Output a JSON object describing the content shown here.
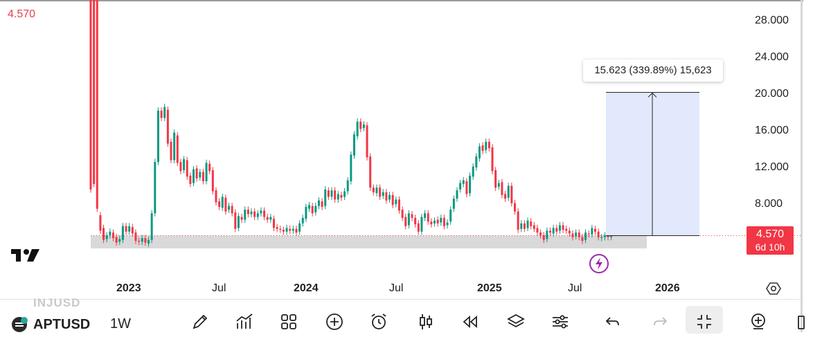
{
  "top_price": "4.570",
  "measure_label": "15.623 (339.89%) 15,623",
  "badge": {
    "price": "4.570",
    "countdown": "6d 10h"
  },
  "toolbar": {
    "symbol_ghost": "INJUSD",
    "symbol": "APTUSD",
    "interval": "1W",
    "tools": [
      "pencil-icon",
      "indicators-icon",
      "grid-icon",
      "add-icon",
      "alarm-icon",
      "candles-icon",
      "replay-icon",
      "layers-icon",
      "settings-sliders-icon",
      "undo-icon",
      "redo-icon",
      "fullscreen-exit-icon",
      "zoom-in-icon"
    ]
  },
  "colors": {
    "up": "#089981",
    "down": "#f23645",
    "measure_fill": "#e3e9fc",
    "zone_fill": "#d9d9d9",
    "flash": "#9c27b0"
  },
  "chart_data": {
    "type": "candlestick",
    "symbol": "APTUSD",
    "interval": "1W",
    "ylim": [
      0,
      30
    ],
    "y_ticks": [
      "28.000",
      "24.000",
      "20.000",
      "16.000",
      "12.000",
      "8.000"
    ],
    "x_tick_labels": [
      "2023",
      "Jul",
      "2024",
      "Jul",
      "2025",
      "Jul",
      "2026"
    ],
    "last_price": 4.57,
    "measure": {
      "from": 4.57,
      "to": 20.193,
      "change": 15.623,
      "change_pct": 339.89,
      "ticks": 15623
    },
    "candles": [
      [
        40,
        9.6
      ],
      [
        33,
        10.2
      ],
      [
        56,
        7.5
      ],
      [
        6.8,
        5.1
      ],
      [
        5.4,
        4.1
      ],
      [
        4.2,
        4.6
      ],
      [
        4.6,
        5.0
      ],
      [
        4.9,
        4.3
      ],
      [
        4.4,
        3.8
      ],
      [
        3.9,
        4.2
      ],
      [
        4.1,
        5.6
      ],
      [
        5.6,
        5.0
      ],
      [
        5.0,
        5.6
      ],
      [
        5.5,
        4.8
      ],
      [
        4.9,
        4.0
      ],
      [
        4.0,
        3.9
      ],
      [
        3.9,
        4.3
      ],
      [
        4.3,
        3.8
      ],
      [
        3.7,
        4.1
      ],
      [
        4.1,
        7.0
      ],
      [
        7.0,
        12.6
      ],
      [
        12.6,
        18.2
      ],
      [
        18.2,
        17.4
      ],
      [
        17.4,
        18.6
      ],
      [
        18.3,
        14.6
      ],
      [
        14.8,
        12.8
      ],
      [
        12.8,
        15.8
      ],
      [
        15.5,
        12.5
      ],
      [
        12.6,
        11.6
      ],
      [
        11.7,
        12.9
      ],
      [
        12.8,
        11.0
      ],
      [
        11.1,
        10.2
      ],
      [
        10.3,
        11.8
      ],
      [
        11.9,
        10.8
      ],
      [
        10.9,
        11.5
      ],
      [
        11.5,
        10.5
      ],
      [
        10.5,
        12.5
      ],
      [
        12.4,
        11.6
      ],
      [
        11.7,
        9.4
      ],
      [
        9.5,
        8.2
      ],
      [
        8.3,
        7.7
      ],
      [
        7.6,
        8.8
      ],
      [
        8.7,
        7.2
      ],
      [
        7.4,
        7.8
      ],
      [
        7.8,
        7.0
      ],
      [
        7.1,
        5.3
      ],
      [
        5.4,
        6.7
      ],
      [
        6.6,
        6.3
      ],
      [
        6.3,
        7.4
      ],
      [
        7.4,
        6.9
      ],
      [
        6.9,
        7.2
      ],
      [
        7.2,
        6.6
      ],
      [
        6.6,
        7.0
      ],
      [
        7.0,
        7.3
      ],
      [
        7.3,
        6.6
      ],
      [
        6.6,
        6.3
      ],
      [
        6.3,
        6.6
      ],
      [
        6.4,
        5.4
      ],
      [
        5.5,
        5.3
      ],
      [
        5.3,
        5.2
      ],
      [
        5.2,
        5.0
      ],
      [
        5.0,
        5.4
      ],
      [
        5.3,
        5.1
      ],
      [
        5.1,
        5.3
      ],
      [
        5.3,
        4.9
      ],
      [
        5.0,
        5.9
      ],
      [
        5.9,
        6.5
      ],
      [
        6.4,
        7.7
      ],
      [
        7.5,
        7.9
      ],
      [
        7.8,
        7.0
      ],
      [
        7.1,
        7.8
      ],
      [
        7.8,
        8.4
      ],
      [
        8.3,
        7.7
      ],
      [
        7.8,
        9.6
      ],
      [
        9.5,
        8.8
      ],
      [
        8.8,
        9.5
      ],
      [
        9.5,
        8.5
      ],
      [
        8.5,
        9.1
      ],
      [
        9.0,
        8.7
      ],
      [
        8.8,
        9.4
      ],
      [
        9.4,
        10.6
      ],
      [
        10.5,
        13.4
      ],
      [
        13.3,
        15.6
      ],
      [
        15.4,
        17.0
      ],
      [
        17.0,
        16.2
      ],
      [
        16.3,
        16.7
      ],
      [
        16.6,
        13.1
      ],
      [
        13.2,
        9.8
      ],
      [
        9.8,
        9.3
      ],
      [
        9.2,
        9.8
      ],
      [
        9.8,
        8.8
      ],
      [
        8.9,
        9.3
      ],
      [
        9.3,
        8.4
      ],
      [
        8.5,
        9.0
      ],
      [
        9.0,
        7.9
      ],
      [
        8.0,
        8.5
      ],
      [
        8.5,
        7.3
      ],
      [
        7.4,
        6.5
      ],
      [
        6.6,
        5.6
      ],
      [
        5.7,
        7.0
      ],
      [
        6.9,
        6.5
      ],
      [
        6.5,
        5.8
      ],
      [
        5.9,
        5.0
      ],
      [
        5.0,
        6.6
      ],
      [
        6.5,
        7.0
      ],
      [
        7.0,
        6.1
      ],
      [
        6.1,
        5.8
      ],
      [
        5.9,
        6.2
      ],
      [
        6.3,
        5.9
      ],
      [
        6.0,
        6.5
      ],
      [
        6.5,
        5.6
      ],
      [
        5.7,
        6.0
      ],
      [
        6.1,
        7.4
      ],
      [
        7.5,
        8.6
      ],
      [
        8.6,
        9.5
      ],
      [
        9.6,
        10.3
      ],
      [
        10.2,
        10.6
      ],
      [
        10.5,
        9.1
      ],
      [
        9.2,
        11.1
      ],
      [
        11.0,
        12.1
      ],
      [
        12.0,
        13.2
      ],
      [
        13.0,
        14.3
      ],
      [
        14.4,
        13.8
      ],
      [
        13.9,
        14.8
      ],
      [
        14.8,
        14.1
      ],
      [
        14.2,
        11.6
      ],
      [
        11.7,
        9.8
      ],
      [
        9.9,
        10.3
      ],
      [
        10.4,
        9.0
      ],
      [
        9.1,
        8.6
      ],
      [
        8.7,
        10.0
      ],
      [
        10.0,
        8.1
      ],
      [
        8.1,
        7.2
      ],
      [
        7.2,
        5.2
      ],
      [
        5.3,
        5.9
      ],
      [
        5.9,
        5.3
      ],
      [
        5.4,
        6.2
      ],
      [
        6.1,
        5.6
      ],
      [
        5.7,
        5.3
      ],
      [
        5.4,
        4.9
      ],
      [
        4.9,
        4.6
      ],
      [
        4.6,
        4.1
      ],
      [
        4.2,
        5.1
      ],
      [
        5.1,
        4.9
      ],
      [
        4.8,
        5.4
      ],
      [
        5.4,
        5.0
      ],
      [
        5.1,
        5.7
      ],
      [
        5.7,
        5.2
      ],
      [
        5.3,
        5.1
      ],
      [
        5.1,
        4.8
      ],
      [
        4.8,
        4.4
      ],
      [
        4.5,
        4.9
      ],
      [
        4.9,
        4.4
      ],
      [
        4.4,
        4.0
      ],
      [
        4.1,
        4.9
      ],
      [
        4.8,
        4.7
      ],
      [
        4.7,
        5.4
      ],
      [
        5.3,
        5.0
      ],
      [
        5.0,
        4.4
      ],
      [
        4.3,
        4.4
      ],
      [
        4.4,
        4.6
      ],
      [
        4.6,
        4.4
      ],
      [
        4.4,
        4.57
      ]
    ]
  }
}
